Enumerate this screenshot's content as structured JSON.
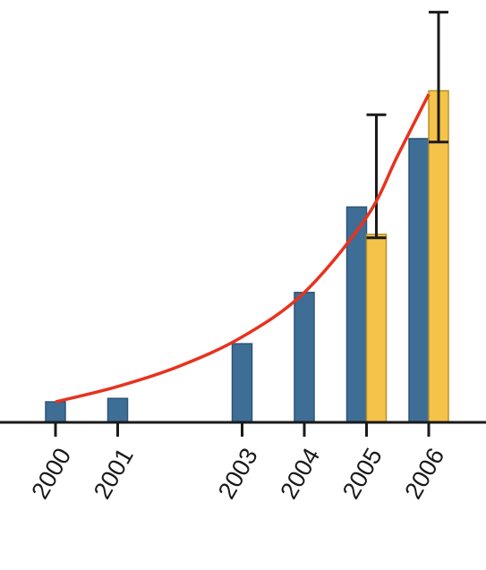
{
  "chart_data": {
    "type": "bar",
    "categories": [
      "2000",
      "2001",
      "2003",
      "2004",
      "2005",
      "2006"
    ],
    "x": [
      2000,
      2001,
      2003,
      2004,
      2005,
      2006
    ],
    "ylim": [
      0,
      100
    ],
    "series": [
      {
        "color": "#3e6e96",
        "values": [
          6,
          7,
          23,
          38,
          63,
          83
        ]
      },
      {
        "color": "#f5c34a",
        "values": [
          null,
          null,
          null,
          null,
          55,
          97
        ],
        "error_upper": [
          null,
          null,
          null,
          null,
          90,
          120
        ],
        "error_lower": [
          null,
          null,
          null,
          null,
          54,
          82
        ]
      }
    ],
    "trend_line": {
      "color": "#e8321e",
      "x": [
        2000,
        2001,
        2002,
        2003,
        2004,
        2005,
        2005.5,
        2006
      ],
      "y": [
        6,
        10.5,
        16.5,
        25,
        38,
        60,
        78,
        96
      ]
    },
    "grid": false,
    "legend": "none",
    "title": "",
    "xlabel": "",
    "ylabel": ""
  }
}
